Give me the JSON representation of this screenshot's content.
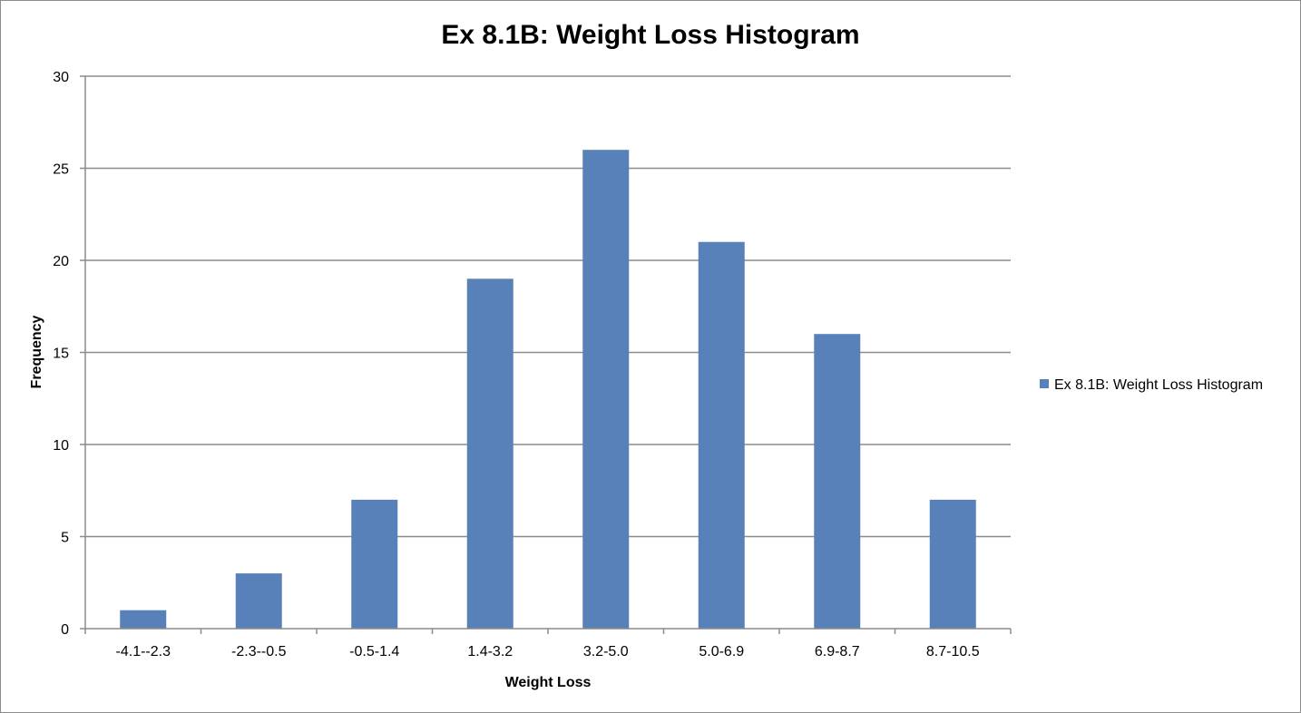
{
  "colors": {
    "bar": "#5881b9",
    "grid": "#8c8c8c",
    "axis": "#8c8c8c"
  },
  "chart_data": {
    "type": "bar",
    "title": "Ex 8.1B: Weight Loss Histogram",
    "xlabel": "Weight Loss",
    "ylabel": "Frequency",
    "categories": [
      "-4.1--2.3",
      "-2.3--0.5",
      "-0.5-1.4",
      "1.4-3.2",
      "3.2-5.0",
      "5.0-6.9",
      "6.9-8.7",
      "8.7-10.5"
    ],
    "series": [
      {
        "name": "Ex 8.1B: Weight Loss Histogram",
        "values": [
          1,
          3,
          7,
          19,
          26,
          21,
          16,
          7
        ]
      }
    ],
    "ylim": [
      0,
      30
    ],
    "yticks": [
      0,
      5,
      10,
      15,
      20,
      25,
      30
    ],
    "grid": true,
    "legend": "right"
  }
}
